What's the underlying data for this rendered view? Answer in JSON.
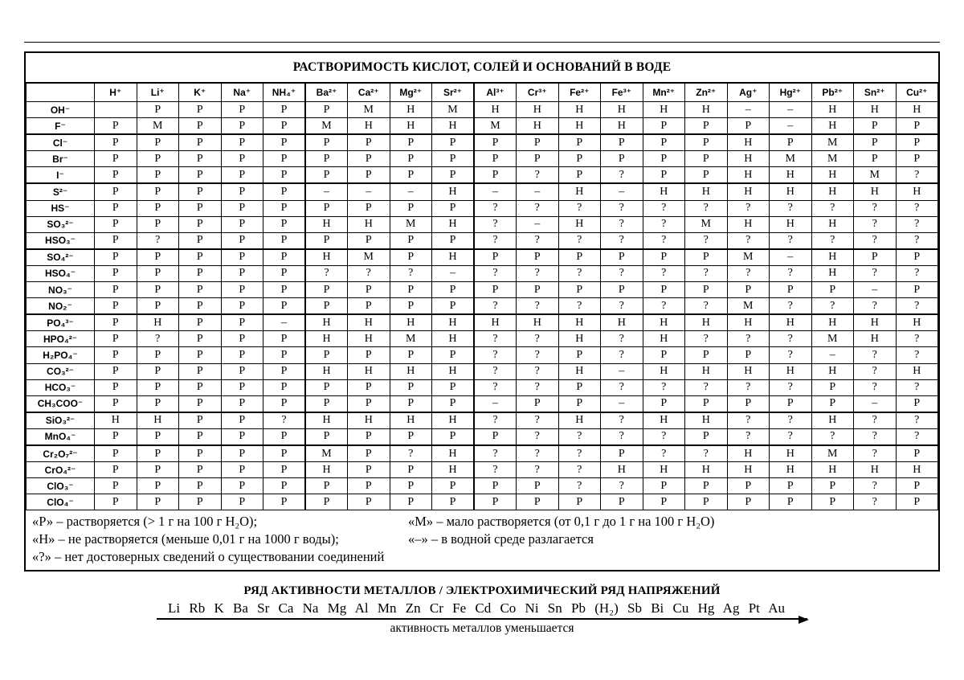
{
  "title": "РАСТВОРИМОСТЬ КИСЛОТ, СОЛЕЙ И ОСНОВАНИЙ В ВОДЕ",
  "table": {
    "corner_label": "",
    "cations": [
      "H⁺",
      "Li⁺",
      "K⁺",
      "Na⁺",
      "NH₄⁺",
      "Ba²⁺",
      "Ca²⁺",
      "Mg²⁺",
      "Sr²⁺",
      "Al³⁺",
      "Cr³⁺",
      "Fe²⁺",
      "Fe³⁺",
      "Mn²⁺",
      "Zn²⁺",
      "Ag⁺",
      "Hg²⁺",
      "Pb²⁺",
      "Sn²⁺",
      "Cu²⁺"
    ],
    "rows": [
      {
        "anion": "OH⁻",
        "values": [
          "",
          "Р",
          "Р",
          "Р",
          "Р",
          "Р",
          "М",
          "Н",
          "М",
          "Н",
          "Н",
          "Н",
          "Н",
          "Н",
          "Н",
          "–",
          "–",
          "Н",
          "Н",
          "Н"
        ]
      },
      {
        "anion": "F⁻",
        "values": [
          "Р",
          "М",
          "Р",
          "Р",
          "Р",
          "М",
          "Н",
          "Н",
          "Н",
          "М",
          "Н",
          "Н",
          "Н",
          "Р",
          "Р",
          "Р",
          "–",
          "Н",
          "Р",
          "Р"
        ]
      },
      {
        "anion": "Cl⁻",
        "values": [
          "Р",
          "Р",
          "Р",
          "Р",
          "Р",
          "Р",
          "Р",
          "Р",
          "Р",
          "Р",
          "Р",
          "Р",
          "Р",
          "Р",
          "Р",
          "Н",
          "Р",
          "М",
          "Р",
          "Р"
        ]
      },
      {
        "anion": "Br⁻",
        "values": [
          "Р",
          "Р",
          "Р",
          "Р",
          "Р",
          "Р",
          "Р",
          "Р",
          "Р",
          "Р",
          "Р",
          "Р",
          "Р",
          "Р",
          "Р",
          "Н",
          "М",
          "М",
          "Р",
          "Р"
        ]
      },
      {
        "anion": "I⁻",
        "values": [
          "Р",
          "Р",
          "Р",
          "Р",
          "Р",
          "Р",
          "Р",
          "Р",
          "Р",
          "Р",
          "?",
          "Р",
          "?",
          "Р",
          "Р",
          "Н",
          "Н",
          "Н",
          "М",
          "?"
        ]
      },
      {
        "anion": "S²⁻",
        "values": [
          "Р",
          "Р",
          "Р",
          "Р",
          "Р",
          "–",
          "–",
          "–",
          "Н",
          "–",
          "–",
          "Н",
          "–",
          "Н",
          "Н",
          "Н",
          "Н",
          "Н",
          "Н",
          "Н"
        ]
      },
      {
        "anion": "HS⁻",
        "values": [
          "Р",
          "Р",
          "Р",
          "Р",
          "Р",
          "Р",
          "Р",
          "Р",
          "Р",
          "?",
          "?",
          "?",
          "?",
          "?",
          "?",
          "?",
          "?",
          "?",
          "?",
          "?"
        ]
      },
      {
        "anion": "SO₃²⁻",
        "values": [
          "Р",
          "Р",
          "Р",
          "Р",
          "Р",
          "Н",
          "Н",
          "М",
          "Н",
          "?",
          "–",
          "Н",
          "?",
          "?",
          "М",
          "Н",
          "Н",
          "Н",
          "?",
          "?"
        ]
      },
      {
        "anion": "HSO₃⁻",
        "values": [
          "Р",
          "?",
          "Р",
          "Р",
          "Р",
          "Р",
          "Р",
          "Р",
          "Р",
          "?",
          "?",
          "?",
          "?",
          "?",
          "?",
          "?",
          "?",
          "?",
          "?",
          "?"
        ]
      },
      {
        "anion": "SO₄²⁻",
        "values": [
          "Р",
          "Р",
          "Р",
          "Р",
          "Р",
          "Н",
          "М",
          "Р",
          "Н",
          "Р",
          "Р",
          "Р",
          "Р",
          "Р",
          "Р",
          "М",
          "–",
          "Н",
          "Р",
          "Р"
        ]
      },
      {
        "anion": "HSO₄⁻",
        "values": [
          "Р",
          "Р",
          "Р",
          "Р",
          "Р",
          "?",
          "?",
          "?",
          "–",
          "?",
          "?",
          "?",
          "?",
          "?",
          "?",
          "?",
          "?",
          "Н",
          "?",
          "?"
        ]
      },
      {
        "anion": "NO₃⁻",
        "values": [
          "Р",
          "Р",
          "Р",
          "Р",
          "Р",
          "Р",
          "Р",
          "Р",
          "Р",
          "Р",
          "Р",
          "Р",
          "Р",
          "Р",
          "Р",
          "Р",
          "Р",
          "Р",
          "–",
          "Р"
        ]
      },
      {
        "anion": "NO₂⁻",
        "values": [
          "Р",
          "Р",
          "Р",
          "Р",
          "Р",
          "Р",
          "Р",
          "Р",
          "Р",
          "?",
          "?",
          "?",
          "?",
          "?",
          "?",
          "М",
          "?",
          "?",
          "?",
          "?"
        ]
      },
      {
        "anion": "PO₄³⁻",
        "values": [
          "Р",
          "Н",
          "Р",
          "Р",
          "–",
          "Н",
          "Н",
          "Н",
          "Н",
          "Н",
          "Н",
          "Н",
          "Н",
          "Н",
          "Н",
          "Н",
          "Н",
          "Н",
          "Н",
          "Н"
        ]
      },
      {
        "anion": "HPO₄²⁻",
        "values": [
          "Р",
          "?",
          "Р",
          "Р",
          "Р",
          "Н",
          "Н",
          "М",
          "Н",
          "?",
          "?",
          "Н",
          "?",
          "Н",
          "?",
          "?",
          "?",
          "М",
          "Н",
          "?"
        ]
      },
      {
        "anion": "H₂PO₄⁻",
        "values": [
          "Р",
          "Р",
          "Р",
          "Р",
          "Р",
          "Р",
          "Р",
          "Р",
          "Р",
          "?",
          "?",
          "Р",
          "?",
          "Р",
          "Р",
          "Р",
          "?",
          "–",
          "?",
          "?"
        ]
      },
      {
        "anion": "CO₃²⁻",
        "values": [
          "Р",
          "Р",
          "Р",
          "Р",
          "Р",
          "Н",
          "Н",
          "Н",
          "Н",
          "?",
          "?",
          "Н",
          "–",
          "Н",
          "Н",
          "Н",
          "Н",
          "Н",
          "?",
          "Н"
        ]
      },
      {
        "anion": "HCO₃⁻",
        "values": [
          "Р",
          "Р",
          "Р",
          "Р",
          "Р",
          "Р",
          "Р",
          "Р",
          "Р",
          "?",
          "?",
          "Р",
          "?",
          "?",
          "?",
          "?",
          "?",
          "Р",
          "?",
          "?"
        ]
      },
      {
        "anion": "CH₃COO⁻",
        "values": [
          "Р",
          "Р",
          "Р",
          "Р",
          "Р",
          "Р",
          "Р",
          "Р",
          "Р",
          "–",
          "Р",
          "Р",
          "–",
          "Р",
          "Р",
          "Р",
          "Р",
          "Р",
          "–",
          "Р"
        ]
      },
      {
        "anion": "SiO₃²⁻",
        "values": [
          "Н",
          "Н",
          "Р",
          "Р",
          "?",
          "Н",
          "Н",
          "Н",
          "Н",
          "?",
          "?",
          "Н",
          "?",
          "Н",
          "Н",
          "?",
          "?",
          "Н",
          "?",
          "?"
        ]
      },
      {
        "anion": "MnO₄⁻",
        "values": [
          "Р",
          "Р",
          "Р",
          "Р",
          "Р",
          "Р",
          "Р",
          "Р",
          "Р",
          "Р",
          "?",
          "?",
          "?",
          "?",
          "Р",
          "?",
          "?",
          "?",
          "?",
          "?"
        ]
      },
      {
        "anion": "Cr₂O₇²⁻",
        "values": [
          "Р",
          "Р",
          "Р",
          "Р",
          "Р",
          "М",
          "Р",
          "?",
          "Н",
          "?",
          "?",
          "?",
          "Р",
          "?",
          "?",
          "Н",
          "Н",
          "М",
          "?",
          "Р"
        ]
      },
      {
        "anion": "CrO₄²⁻",
        "values": [
          "Р",
          "Р",
          "Р",
          "Р",
          "Р",
          "Н",
          "Р",
          "Р",
          "Н",
          "?",
          "?",
          "?",
          "Н",
          "Н",
          "Н",
          "Н",
          "Н",
          "Н",
          "Н",
          "Н"
        ]
      },
      {
        "anion": "ClO₃⁻",
        "values": [
          "Р",
          "Р",
          "Р",
          "Р",
          "Р",
          "Р",
          "Р",
          "Р",
          "Р",
          "Р",
          "Р",
          "?",
          "?",
          "Р",
          "Р",
          "Р",
          "Р",
          "Р",
          "?",
          "Р"
        ]
      },
      {
        "anion": "ClO₄⁻",
        "values": [
          "Р",
          "Р",
          "Р",
          "Р",
          "Р",
          "Р",
          "Р",
          "Р",
          "Р",
          "Р",
          "Р",
          "Р",
          "Р",
          "Р",
          "Р",
          "Р",
          "Р",
          "Р",
          "?",
          "Р"
        ]
      }
    ]
  },
  "legend": {
    "p": "«Р» – растворяется (> 1 г на 100 г H₂O);",
    "m": "«М» – мало растворяется (от 0,1 г до 1 г на 100 г H₂O)",
    "n": "«Н» – не растворяется (меньше 0,01 г на 1000 г воды);",
    "dash": "«–»  – в водной среде разлагается",
    "q": "«?» – нет достоверных сведений о существовании соединений"
  },
  "activity_series": {
    "title": "РЯД АКТИВНОСТИ МЕТАЛЛОВ / ЭЛЕКТРОХИМИЧЕСКИЙ РЯД НАПРЯЖЕНИЙ",
    "series": "Li Rb K Ba Sr Ca Na Mg Al Mn Zn Cr Fe Cd Co Ni Sn Pb (H₂) Sb Bi Cu Hg Ag Pt Au",
    "caption": "активность металлов уменьшается"
  }
}
